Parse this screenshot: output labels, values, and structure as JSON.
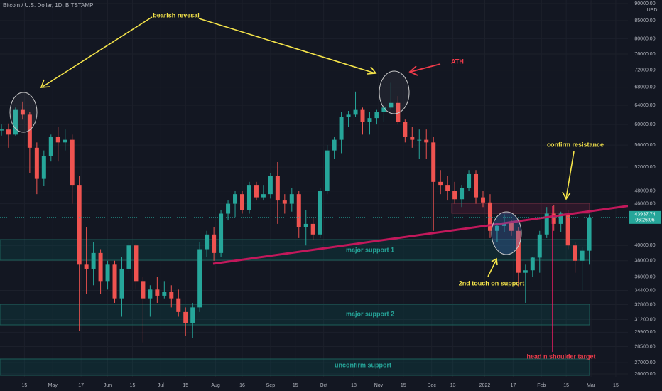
{
  "chart_data": {
    "type": "candlestick",
    "title": "Bitcoin / U.S. Dollar, 1D, BITSTAMP",
    "currency": "USD",
    "log_scale": true,
    "grid": true,
    "up_color": "#26a69a",
    "down_color": "#ef5350",
    "open": [
      58800,
      59000,
      58000,
      63000,
      62000,
      55500,
      50000,
      54000,
      57500,
      56500,
      57000,
      49000,
      37500,
      37000,
      39000,
      35500,
      37500,
      33500,
      37000,
      40000,
      35500,
      33500,
      34500,
      33800,
      34200,
      33500,
      32000,
      30800,
      32500,
      39500,
      41500,
      39000,
      44500,
      46000,
      47500,
      45000,
      49000,
      47000,
      47500,
      50500,
      46500,
      46000,
      47500,
      42500,
      43000,
      41500,
      48000,
      55000,
      57000,
      61500,
      62000,
      63000,
      60500,
      61300,
      62500,
      63500,
      64500,
      60500,
      57500,
      57000,
      57000,
      56500,
      49500,
      49000,
      48000,
      46700,
      48500,
      50800,
      47000,
      46200,
      42000,
      42700,
      43100,
      42000,
      36500,
      36800,
      38400,
      41500,
      44500,
      43000,
      44500,
      40000,
      38000,
      39300
    ],
    "high": [
      60000,
      60200,
      63500,
      64800,
      62500,
      56500,
      55000,
      58000,
      59500,
      59000,
      58000,
      50500,
      42500,
      40500,
      39500,
      38000,
      38000,
      38500,
      40500,
      40200,
      36000,
      35000,
      36000,
      35500,
      35000,
      34500,
      32500,
      33000,
      40500,
      42000,
      42500,
      45000,
      46500,
      48000,
      48000,
      49500,
      49500,
      49000,
      51000,
      52900,
      47500,
      48500,
      48000,
      45000,
      44000,
      48500,
      56000,
      57500,
      62500,
      62800,
      67000,
      63500,
      62500,
      63000,
      64000,
      69000,
      66000,
      61000,
      59500,
      59000,
      59000,
      57500,
      51500,
      50500,
      49500,
      49000,
      51500,
      51500,
      48000,
      47500,
      43000,
      44400,
      43500,
      42500,
      37500,
      38500,
      42000,
      45500,
      45800,
      44800,
      45000,
      40500,
      39800,
      44400
    ],
    "low": [
      57800,
      55500,
      57800,
      61000,
      51000,
      47500,
      48800,
      53000,
      53000,
      55000,
      46000,
      30000,
      34000,
      35000,
      34000,
      34500,
      33000,
      31500,
      36500,
      34500,
      28900,
      31500,
      33000,
      33500,
      32500,
      31500,
      29500,
      29300,
      32000,
      38500,
      38000,
      38500,
      43500,
      44000,
      44500,
      44500,
      46500,
      46500,
      46800,
      43000,
      44500,
      44800,
      41000,
      40000,
      40800,
      41000,
      47500,
      53500,
      54500,
      59500,
      61500,
      58000,
      58000,
      60000,
      60500,
      63000,
      60000,
      56500,
      55500,
      53500,
      53500,
      42000,
      47500,
      46500,
      46000,
      45500,
      48000,
      46000,
      45500,
      41000,
      40500,
      41800,
      41300,
      34800,
      33000,
      36000,
      36500,
      41000,
      42000,
      41800,
      39500,
      36500,
      34400,
      37500
    ],
    "close": [
      59000,
      58000,
      63000,
      62000,
      55500,
      50000,
      54000,
      57500,
      56500,
      57000,
      49000,
      37500,
      37000,
      39000,
      35500,
      37500,
      33500,
      37000,
      40000,
      35500,
      33500,
      34500,
      33800,
      34200,
      33500,
      32000,
      30800,
      32500,
      39500,
      41500,
      39000,
      44500,
      46000,
      47500,
      45000,
      49000,
      47000,
      47500,
      50500,
      46500,
      46000,
      47500,
      42500,
      43000,
      41500,
      48000,
      55000,
      57000,
      61500,
      62000,
      63000,
      60500,
      61300,
      62500,
      63500,
      64500,
      60500,
      57500,
      57000,
      57000,
      56500,
      49500,
      49000,
      48000,
      46700,
      48500,
      50800,
      47000,
      46200,
      42000,
      42700,
      43100,
      42000,
      36500,
      36800,
      38400,
      41500,
      44500,
      43000,
      44500,
      40000,
      38000,
      39300,
      43900
    ],
    "ylim": [
      26000,
      90000
    ],
    "yticks": [
      {
        "value": 90000,
        "label": "90000.00"
      },
      {
        "value": 85000,
        "label": "85000.00"
      },
      {
        "value": 80000,
        "label": "80000.00"
      },
      {
        "value": 76000,
        "label": "76000.00"
      },
      {
        "value": 72000,
        "label": "72000.00"
      },
      {
        "value": 68000,
        "label": "68000.00"
      },
      {
        "value": 64000,
        "label": "64000.00"
      },
      {
        "value": 60000,
        "label": "60000.00"
      },
      {
        "value": 56000,
        "label": "56000.00"
      },
      {
        "value": 52000,
        "label": "52000.00"
      },
      {
        "value": 48000,
        "label": "48000.00"
      },
      {
        "value": 46000,
        "label": "46000.00"
      },
      {
        "value": 40000,
        "label": "40000.00"
      },
      {
        "value": 38000,
        "label": "38000.00"
      },
      {
        "value": 36000,
        "label": "36000.00"
      },
      {
        "value": 34400,
        "label": "34400.00"
      },
      {
        "value": 32800,
        "label": "32800.00"
      },
      {
        "value": 31200,
        "label": "31200.00"
      },
      {
        "value": 29900,
        "label": "29900.00"
      },
      {
        "value": 28500,
        "label": "28500.00"
      },
      {
        "value": 27000,
        "label": "27000.00"
      },
      {
        "value": 26000,
        "label": "26000.00"
      }
    ],
    "xlim": [
      -0.2,
      88.46
    ],
    "xticks": [
      {
        "value": 3.25,
        "label": "15"
      },
      {
        "value": 7.25,
        "label": "May"
      },
      {
        "value": 11.25,
        "label": "17"
      },
      {
        "value": 15,
        "label": "Jun"
      },
      {
        "value": 18.5,
        "label": "15"
      },
      {
        "value": 22.5,
        "label": "Jul"
      },
      {
        "value": 26,
        "label": "15"
      },
      {
        "value": 30.25,
        "label": "Aug"
      },
      {
        "value": 34,
        "label": "16"
      },
      {
        "value": 38,
        "label": "Sep"
      },
      {
        "value": 41.5,
        "label": "15"
      },
      {
        "value": 45.5,
        "label": "Oct"
      },
      {
        "value": 49.75,
        "label": "18"
      },
      {
        "value": 53.25,
        "label": "Nov"
      },
      {
        "value": 56.75,
        "label": "15"
      },
      {
        "value": 60.75,
        "label": "Dec"
      },
      {
        "value": 63.75,
        "label": "13"
      },
      {
        "value": 68.25,
        "label": "2022"
      },
      {
        "value": 72.25,
        "label": "17"
      },
      {
        "value": 76.25,
        "label": "Feb"
      },
      {
        "value": 79.75,
        "label": "15"
      },
      {
        "value": 83.25,
        "label": "Mar"
      },
      {
        "value": 86.75,
        "label": "15"
      }
    ],
    "last_price": 43937.74,
    "countdown": "06:26:06",
    "annotations": {
      "bearish": "bearish revesal",
      "ath": "ATH",
      "confirm": "confirm resistance",
      "touch": "2nd touch on support",
      "support1": "major support 1",
      "support2": "major support 2",
      "unconfirm": "unconfirm support",
      "target": "head n shoulder target"
    }
  }
}
